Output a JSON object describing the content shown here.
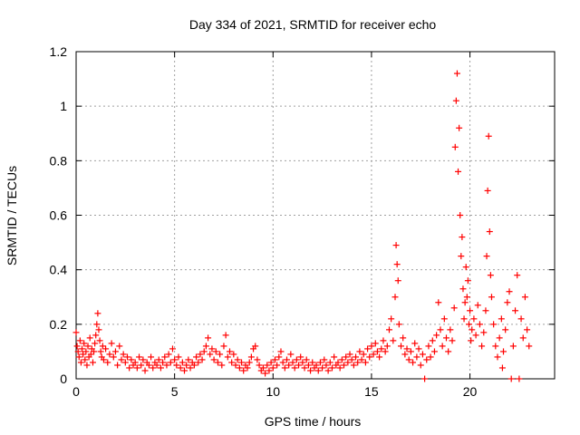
{
  "chart_data": {
    "type": "scatter",
    "title": "Day 334 of 2021, SRMTID for receiver echo",
    "xlabel": "GPS time / hours",
    "ylabel": "SRMTID / TECUs",
    "xlim": [
      0,
      24.3
    ],
    "ylim": [
      0,
      1.2
    ],
    "xticks": [
      0,
      5,
      10,
      15,
      20
    ],
    "xtick_labels": [
      "0",
      "5",
      "10",
      "15",
      "20"
    ],
    "yticks": [
      0,
      0.2,
      0.4,
      0.6,
      0.8,
      1,
      1.2
    ],
    "ytick_labels": [
      "0",
      "0.2",
      "0.4",
      "0.6",
      "0.8",
      "1",
      "1.2"
    ],
    "grid": true,
    "marker": "plus",
    "series": [
      {
        "name": "SRMTID",
        "color": "#ff0000",
        "points": [
          [
            0.0,
            0.17
          ],
          [
            0.05,
            0.12
          ],
          [
            0.1,
            0.1
          ],
          [
            0.15,
            0.08
          ],
          [
            0.2,
            0.14
          ],
          [
            0.25,
            0.06
          ],
          [
            0.3,
            0.11
          ],
          [
            0.35,
            0.09
          ],
          [
            0.4,
            0.13
          ],
          [
            0.45,
            0.07
          ],
          [
            0.5,
            0.1
          ],
          [
            0.55,
            0.05
          ],
          [
            0.6,
            0.12
          ],
          [
            0.65,
            0.08
          ],
          [
            0.7,
            0.15
          ],
          [
            0.75,
            0.09
          ],
          [
            0.8,
            0.11
          ],
          [
            0.85,
            0.06
          ],
          [
            0.9,
            0.1
          ],
          [
            0.95,
            0.13
          ],
          [
            1.0,
            0.16
          ],
          [
            1.05,
            0.2
          ],
          [
            1.1,
            0.24
          ],
          [
            1.15,
            0.18
          ],
          [
            1.2,
            0.14
          ],
          [
            1.25,
            0.1
          ],
          [
            1.3,
            0.08
          ],
          [
            1.35,
            0.12
          ],
          [
            1.4,
            0.07
          ],
          [
            1.5,
            0.11
          ],
          [
            1.6,
            0.06
          ],
          [
            1.7,
            0.09
          ],
          [
            1.8,
            0.13
          ],
          [
            1.9,
            0.08
          ],
          [
            2.0,
            0.1
          ],
          [
            2.1,
            0.05
          ],
          [
            2.2,
            0.12
          ],
          [
            2.3,
            0.07
          ],
          [
            2.4,
            0.09
          ],
          [
            2.5,
            0.06
          ],
          [
            2.6,
            0.08
          ],
          [
            2.7,
            0.04
          ],
          [
            2.8,
            0.07
          ],
          [
            2.9,
            0.05
          ],
          [
            3.0,
            0.06
          ],
          [
            3.1,
            0.04
          ],
          [
            3.2,
            0.08
          ],
          [
            3.3,
            0.05
          ],
          [
            3.4,
            0.07
          ],
          [
            3.5,
            0.03
          ],
          [
            3.6,
            0.06
          ],
          [
            3.7,
            0.05
          ],
          [
            3.8,
            0.08
          ],
          [
            3.9,
            0.04
          ],
          [
            4.0,
            0.06
          ],
          [
            4.1,
            0.05
          ],
          [
            4.2,
            0.07
          ],
          [
            4.3,
            0.04
          ],
          [
            4.4,
            0.06
          ],
          [
            4.5,
            0.08
          ],
          [
            4.6,
            0.05
          ],
          [
            4.7,
            0.09
          ],
          [
            4.8,
            0.06
          ],
          [
            4.9,
            0.11
          ],
          [
            5.0,
            0.07
          ],
          [
            5.1,
            0.05
          ],
          [
            5.2,
            0.08
          ],
          [
            5.3,
            0.04
          ],
          [
            5.4,
            0.06
          ],
          [
            5.5,
            0.03
          ],
          [
            5.6,
            0.05
          ],
          [
            5.7,
            0.07
          ],
          [
            5.8,
            0.04
          ],
          [
            5.9,
            0.06
          ],
          [
            6.0,
            0.05
          ],
          [
            6.1,
            0.08
          ],
          [
            6.2,
            0.06
          ],
          [
            6.3,
            0.09
          ],
          [
            6.4,
            0.07
          ],
          [
            6.5,
            0.1
          ],
          [
            6.6,
            0.12
          ],
          [
            6.7,
            0.15
          ],
          [
            6.8,
            0.09
          ],
          [
            6.9,
            0.11
          ],
          [
            7.0,
            0.07
          ],
          [
            7.1,
            0.1
          ],
          [
            7.2,
            0.06
          ],
          [
            7.3,
            0.09
          ],
          [
            7.4,
            0.05
          ],
          [
            7.5,
            0.12
          ],
          [
            7.6,
            0.16
          ],
          [
            7.7,
            0.08
          ],
          [
            7.8,
            0.1
          ],
          [
            7.9,
            0.06
          ],
          [
            8.0,
            0.09
          ],
          [
            8.1,
            0.05
          ],
          [
            8.2,
            0.07
          ],
          [
            8.3,
            0.04
          ],
          [
            8.4,
            0.06
          ],
          [
            8.5,
            0.03
          ],
          [
            8.6,
            0.05
          ],
          [
            8.7,
            0.04
          ],
          [
            8.8,
            0.06
          ],
          [
            8.9,
            0.08
          ],
          [
            9.0,
            0.11
          ],
          [
            9.1,
            0.12
          ],
          [
            9.2,
            0.07
          ],
          [
            9.3,
            0.05
          ],
          [
            9.4,
            0.03
          ],
          [
            9.5,
            0.04
          ],
          [
            9.6,
            0.02
          ],
          [
            9.7,
            0.05
          ],
          [
            9.8,
            0.03
          ],
          [
            9.9,
            0.06
          ],
          [
            10.0,
            0.04
          ],
          [
            10.1,
            0.07
          ],
          [
            10.2,
            0.05
          ],
          [
            10.3,
            0.08
          ],
          [
            10.4,
            0.1
          ],
          [
            10.5,
            0.06
          ],
          [
            10.6,
            0.04
          ],
          [
            10.7,
            0.07
          ],
          [
            10.8,
            0.05
          ],
          [
            10.9,
            0.09
          ],
          [
            11.0,
            0.06
          ],
          [
            11.1,
            0.04
          ],
          [
            11.2,
            0.07
          ],
          [
            11.3,
            0.05
          ],
          [
            11.4,
            0.08
          ],
          [
            11.5,
            0.06
          ],
          [
            11.6,
            0.04
          ],
          [
            11.7,
            0.07
          ],
          [
            11.8,
            0.05
          ],
          [
            11.9,
            0.03
          ],
          [
            12.0,
            0.06
          ],
          [
            12.1,
            0.04
          ],
          [
            12.2,
            0.05
          ],
          [
            12.3,
            0.03
          ],
          [
            12.4,
            0.06
          ],
          [
            12.5,
            0.04
          ],
          [
            12.6,
            0.07
          ],
          [
            12.7,
            0.05
          ],
          [
            12.8,
            0.03
          ],
          [
            12.9,
            0.06
          ],
          [
            13.0,
            0.04
          ],
          [
            13.1,
            0.08
          ],
          [
            13.2,
            0.05
          ],
          [
            13.3,
            0.06
          ],
          [
            13.4,
            0.04
          ],
          [
            13.5,
            0.07
          ],
          [
            13.6,
            0.05
          ],
          [
            13.7,
            0.08
          ],
          [
            13.8,
            0.06
          ],
          [
            13.9,
            0.09
          ],
          [
            14.0,
            0.07
          ],
          [
            14.1,
            0.05
          ],
          [
            14.2,
            0.08
          ],
          [
            14.3,
            0.06
          ],
          [
            14.4,
            0.1
          ],
          [
            14.5,
            0.07
          ],
          [
            14.6,
            0.09
          ],
          [
            14.7,
            0.06
          ],
          [
            14.8,
            0.11
          ],
          [
            14.9,
            0.08
          ],
          [
            15.0,
            0.12
          ],
          [
            15.1,
            0.09
          ],
          [
            15.2,
            0.13
          ],
          [
            15.3,
            0.1
          ],
          [
            15.4,
            0.08
          ],
          [
            15.5,
            0.11
          ],
          [
            15.6,
            0.14
          ],
          [
            15.7,
            0.1
          ],
          [
            15.8,
            0.12
          ],
          [
            15.9,
            0.18
          ],
          [
            16.0,
            0.22
          ],
          [
            16.1,
            0.14
          ],
          [
            16.2,
            0.3
          ],
          [
            16.25,
            0.49
          ],
          [
            16.3,
            0.42
          ],
          [
            16.35,
            0.36
          ],
          [
            16.4,
            0.2
          ],
          [
            16.5,
            0.12
          ],
          [
            16.6,
            0.15
          ],
          [
            16.7,
            0.09
          ],
          [
            16.8,
            0.11
          ],
          [
            16.9,
            0.07
          ],
          [
            17.0,
            0.1
          ],
          [
            17.1,
            0.06
          ],
          [
            17.2,
            0.13
          ],
          [
            17.3,
            0.08
          ],
          [
            17.4,
            0.11
          ],
          [
            17.5,
            0.05
          ],
          [
            17.6,
            0.09
          ],
          [
            17.7,
            0.0
          ],
          [
            17.8,
            0.07
          ],
          [
            17.9,
            0.12
          ],
          [
            18.0,
            0.08
          ],
          [
            18.1,
            0.14
          ],
          [
            18.2,
            0.1
          ],
          [
            18.3,
            0.16
          ],
          [
            18.4,
            0.28
          ],
          [
            18.5,
            0.18
          ],
          [
            18.6,
            0.12
          ],
          [
            18.7,
            0.22
          ],
          [
            18.8,
            0.15
          ],
          [
            18.9,
            0.1
          ],
          [
            19.0,
            0.18
          ],
          [
            19.1,
            0.14
          ],
          [
            19.2,
            0.26
          ],
          [
            19.25,
            0.85
          ],
          [
            19.3,
            1.02
          ],
          [
            19.35,
            1.12
          ],
          [
            19.4,
            0.76
          ],
          [
            19.45,
            0.92
          ],
          [
            19.5,
            0.6
          ],
          [
            19.55,
            0.45
          ],
          [
            19.6,
            0.52
          ],
          [
            19.65,
            0.33
          ],
          [
            19.7,
            0.22
          ],
          [
            19.75,
            0.28
          ],
          [
            19.8,
            0.41
          ],
          [
            19.85,
            0.3
          ],
          [
            19.9,
            0.36
          ],
          [
            19.95,
            0.2
          ],
          [
            20.0,
            0.25
          ],
          [
            20.05,
            0.14
          ],
          [
            20.1,
            0.18
          ],
          [
            20.2,
            0.22
          ],
          [
            20.3,
            0.16
          ],
          [
            20.4,
            0.27
          ],
          [
            20.5,
            0.2
          ],
          [
            20.6,
            0.12
          ],
          [
            20.7,
            0.17
          ],
          [
            20.8,
            0.25
          ],
          [
            20.85,
            0.45
          ],
          [
            20.9,
            0.69
          ],
          [
            20.95,
            0.89
          ],
          [
            21.0,
            0.54
          ],
          [
            21.05,
            0.38
          ],
          [
            21.1,
            0.3
          ],
          [
            21.2,
            0.2
          ],
          [
            21.3,
            0.12
          ],
          [
            21.4,
            0.08
          ],
          [
            21.5,
            0.15
          ],
          [
            21.6,
            0.22
          ],
          [
            21.65,
            0.04
          ],
          [
            21.7,
            0.1
          ],
          [
            21.8,
            0.18
          ],
          [
            21.9,
            0.28
          ],
          [
            22.0,
            0.32
          ],
          [
            22.1,
            0.0
          ],
          [
            22.2,
            0.12
          ],
          [
            22.3,
            0.25
          ],
          [
            22.4,
            0.38
          ],
          [
            22.5,
            0.0
          ],
          [
            22.6,
            0.22
          ],
          [
            22.7,
            0.15
          ],
          [
            22.8,
            0.3
          ],
          [
            22.9,
            0.18
          ],
          [
            23.0,
            0.12
          ]
        ]
      }
    ]
  }
}
